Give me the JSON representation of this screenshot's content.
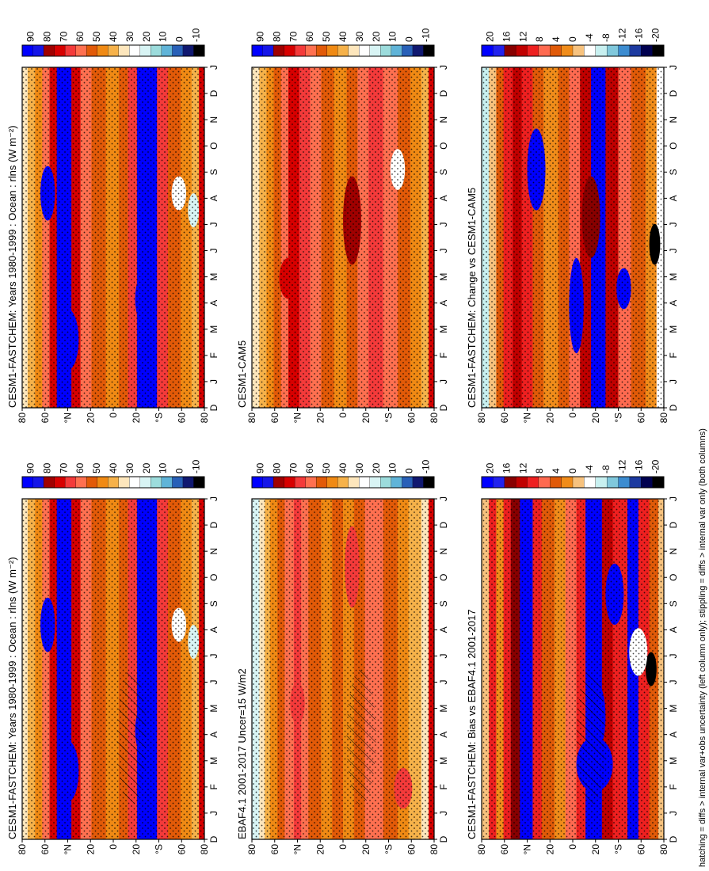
{
  "figure": {
    "footer": "hatching = diffs > internal var+obs uncertainty (left column only); stippling = diffs > internal var only (both columns)"
  },
  "chart_data": [
    {
      "id": "left-top",
      "type": "heatmap",
      "title": "CESM1-FASTCHEM: Years 1980-1999 : Ocean : rlns (W m⁻²)",
      "x_ticks": [
        "D",
        "J",
        "F",
        "M",
        "A",
        "M",
        "J",
        "J",
        "A",
        "S",
        "O",
        "N",
        "D",
        "J"
      ],
      "y_ticks": [
        "80",
        "60",
        "°N",
        "20",
        "0",
        "20",
        "°S",
        "60",
        "80"
      ],
      "colorbar": [
        "90",
        "80",
        "70",
        "60",
        "50",
        "40",
        "30",
        "20",
        "10",
        "0",
        "-10"
      ],
      "hatching": true
    },
    {
      "id": "left-middle",
      "type": "heatmap",
      "title": "EBAF4.1 2001-2017 Uncer=15 W/m2",
      "x_ticks": [
        "D",
        "J",
        "F",
        "M",
        "A",
        "M",
        "J",
        "J",
        "A",
        "S",
        "O",
        "N",
        "D",
        "J"
      ],
      "y_ticks": [
        "80",
        "60",
        "°N",
        "20",
        "0",
        "20",
        "°S",
        "60",
        "80"
      ],
      "colorbar": [
        "90",
        "80",
        "70",
        "60",
        "50",
        "40",
        "30",
        "20",
        "10",
        "0",
        "-10"
      ],
      "hatching": true
    },
    {
      "id": "left-bottom",
      "type": "heatmap",
      "title": "CESM1-FASTCHEM: Bias vs EBAF4.1 2001-2017",
      "x_ticks": [
        "D",
        "J",
        "F",
        "M",
        "A",
        "M",
        "J",
        "J",
        "A",
        "S",
        "O",
        "N",
        "D",
        "J"
      ],
      "y_ticks": [
        "80",
        "60",
        "°N",
        "20",
        "0",
        "20",
        "°S",
        "60",
        "80"
      ],
      "colorbar": [
        "20",
        "16",
        "12",
        "8",
        "4",
        "0",
        "-4",
        "-8",
        "-12",
        "-16",
        "-20"
      ],
      "hatching": true
    },
    {
      "id": "right-top",
      "type": "heatmap",
      "title": "CESM1-FASTCHEM: Years 1980-1999 : Ocean : rlns (W m⁻²)",
      "x_ticks": [
        "D",
        "J",
        "F",
        "M",
        "A",
        "M",
        "J",
        "J",
        "A",
        "S",
        "O",
        "N",
        "D",
        "J"
      ],
      "y_ticks": [
        "80",
        "60",
        "°N",
        "20",
        "0",
        "20",
        "°S",
        "60",
        "80"
      ],
      "colorbar": [
        "90",
        "80",
        "70",
        "60",
        "50",
        "40",
        "30",
        "20",
        "10",
        "0",
        "-10"
      ],
      "hatching": false
    },
    {
      "id": "right-middle",
      "type": "heatmap",
      "title": "CESM1-CAM5",
      "x_ticks": [
        "D",
        "J",
        "F",
        "M",
        "A",
        "M",
        "J",
        "J",
        "A",
        "S",
        "O",
        "N",
        "D",
        "J"
      ],
      "y_ticks": [
        "80",
        "60",
        "°N",
        "20",
        "0",
        "20",
        "°S",
        "60",
        "80"
      ],
      "colorbar": [
        "90",
        "80",
        "70",
        "60",
        "50",
        "40",
        "30",
        "20",
        "10",
        "0",
        "-10"
      ],
      "hatching": false
    },
    {
      "id": "right-bottom",
      "type": "heatmap",
      "title": "CESM1-FASTCHEM: Change vs CESM1-CAM5",
      "x_ticks": [
        "D",
        "J",
        "F",
        "M",
        "A",
        "M",
        "J",
        "J",
        "A",
        "S",
        "O",
        "N",
        "D",
        "J"
      ],
      "y_ticks": [
        "80",
        "60",
        "°N",
        "20",
        "0",
        "20",
        "°S",
        "60",
        "80"
      ],
      "colorbar": [
        "20",
        "16",
        "12",
        "8",
        "4",
        "0",
        "-4",
        "-8",
        "-12",
        "-16",
        "-20"
      ],
      "hatching": false
    }
  ]
}
